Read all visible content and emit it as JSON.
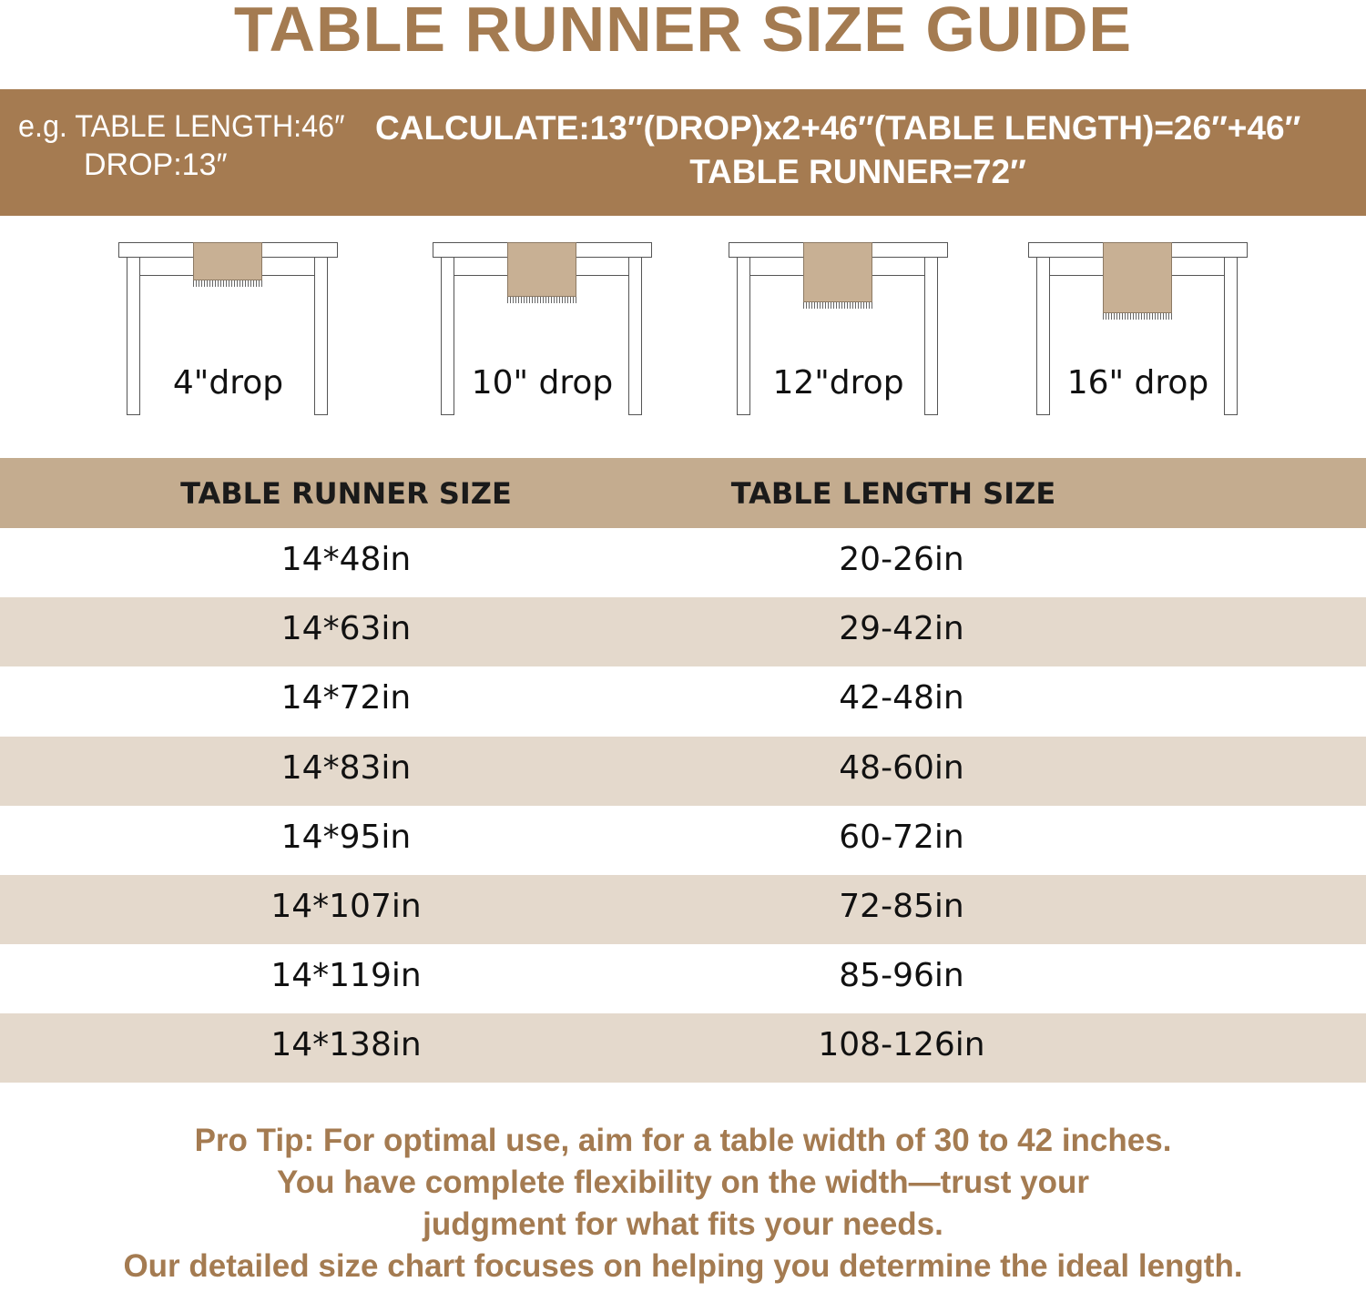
{
  "title": "TABLE RUNNER SIZE GUIDE",
  "banner": {
    "example_length": "e.g. TABLE LENGTH:46″",
    "example_drop": "DROP:13″",
    "calculate": "CALCULATE:13″(DROP)x2+46″(TABLE LENGTH)=26″+46″",
    "result": "TABLE RUNNER=72″"
  },
  "drops": [
    {
      "label": "4\"drop",
      "drop_in": 4
    },
    {
      "label": "10\" drop",
      "drop_in": 10
    },
    {
      "label": "12\"drop",
      "drop_in": 12
    },
    {
      "label": "16\" drop",
      "drop_in": 16
    }
  ],
  "table": {
    "headers": [
      "TABLE RUNNER SIZE",
      "TABLE LENGTH SIZE"
    ],
    "rows": [
      [
        "14*48in",
        "20-26in"
      ],
      [
        "14*63in",
        "29-42in"
      ],
      [
        "14*72in",
        "42-48in"
      ],
      [
        "14*83in",
        "48-60in"
      ],
      [
        "14*95in",
        "60-72in"
      ],
      [
        "14*107in",
        "72-85in"
      ],
      [
        "14*119in",
        "85-96in"
      ],
      [
        "14*138in",
        "108-126in"
      ]
    ]
  },
  "tip": [
    "Pro Tip: For optimal use, aim for a table width of 30 to 42 inches.",
    "You have complete flexibility on the width—trust your",
    "judgment for what fits your needs.",
    "Our detailed size chart focuses on helping you determine the ideal length."
  ],
  "colors": {
    "brand": "#a57b51",
    "header": "#c4ac8f",
    "alt_row": "#e4d9cc",
    "runner": "#c8b094"
  }
}
